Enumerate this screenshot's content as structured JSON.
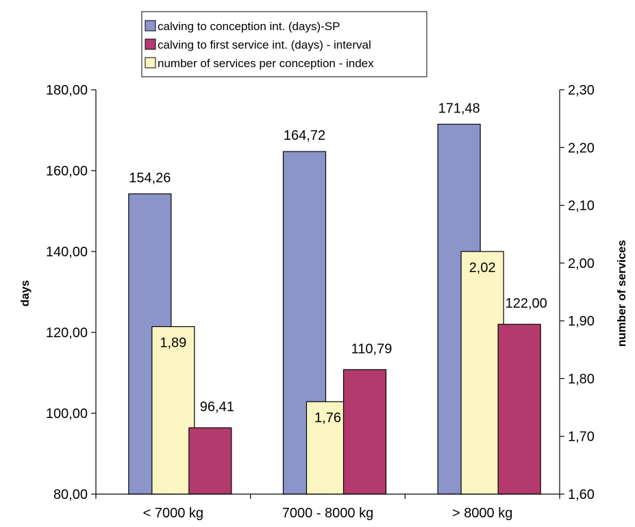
{
  "chart_data": {
    "type": "bar",
    "categories": [
      "< 7000 kg",
      "7000 - 8000 kg",
      "> 8000 kg"
    ],
    "series": [
      {
        "name": "calving to conception int. (days)-SP",
        "axis": "left",
        "color": "#8b95cb",
        "values": [
          154.26,
          164.72,
          171.48
        ],
        "labels": [
          "154,26",
          "164,72",
          "171,48"
        ]
      },
      {
        "name": "number of services per conception - index",
        "axis": "right",
        "color": "#fbf5c2",
        "values": [
          1.89,
          1.76,
          2.02
        ],
        "labels": [
          "1,89",
          "1,76",
          "2,02"
        ]
      },
      {
        "name": "calving to first service int. (days) - interval",
        "axis": "left",
        "color": "#b23a6c",
        "values": [
          96.41,
          110.79,
          122.0
        ],
        "labels": [
          "96,41",
          "110,79",
          "122,00"
        ]
      }
    ],
    "legend_order": [
      0,
      2,
      1
    ],
    "legend_position": "top",
    "y_left": {
      "label": "days",
      "min": 80,
      "max": 180,
      "ticks": [
        80,
        100,
        120,
        140,
        160,
        180
      ],
      "tick_labels": [
        "80,00",
        "100,00",
        "120,00",
        "140,00",
        "160,00",
        "180,00"
      ]
    },
    "y_right": {
      "label": "number of services",
      "min": 1.6,
      "max": 2.3,
      "ticks": [
        1.6,
        1.7,
        1.8,
        1.9,
        2.0,
        2.1,
        2.2,
        2.3
      ],
      "tick_labels": [
        "1,60",
        "1,70",
        "1,80",
        "1,90",
        "2,00",
        "2,10",
        "2,20",
        "2,30"
      ]
    },
    "grid": false
  }
}
